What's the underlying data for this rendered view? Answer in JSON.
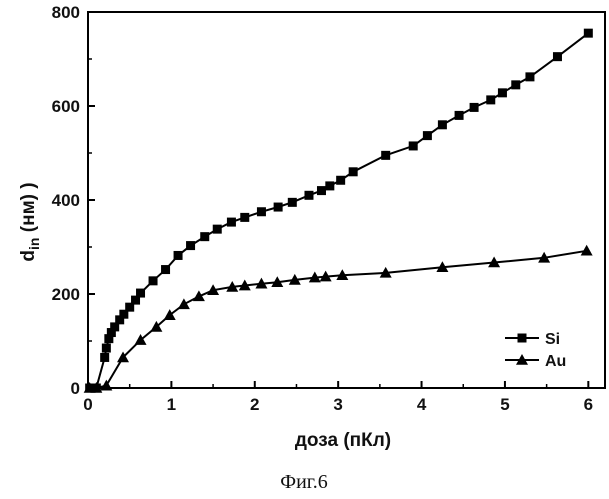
{
  "caption": "Фиг.6",
  "chart_data": {
    "type": "line",
    "xlabel": "доза (пКл)",
    "ylabel_main": "d",
    "ylabel_sub": "in",
    "ylabel_rest": " (нм)  )",
    "xlim": [
      0,
      6.2
    ],
    "ylim": [
      0,
      800
    ],
    "x_ticks": [
      "0",
      "1",
      "2",
      "3",
      "4",
      "5",
      "6"
    ],
    "y_ticks": [
      "0",
      "200",
      "400",
      "600",
      "800"
    ],
    "legend_position": "bottom-right",
    "grid": false,
    "series": [
      {
        "name": "Si",
        "marker": "square",
        "color": "#000000",
        "points": [
          [
            0.02,
            0
          ],
          [
            0.1,
            0
          ],
          [
            0.2,
            65
          ],
          [
            0.22,
            85
          ],
          [
            0.25,
            105
          ],
          [
            0.28,
            118
          ],
          [
            0.32,
            130
          ],
          [
            0.38,
            145
          ],
          [
            0.43,
            157
          ],
          [
            0.5,
            172
          ],
          [
            0.57,
            187
          ],
          [
            0.63,
            202
          ],
          [
            0.78,
            228
          ],
          [
            0.93,
            252
          ],
          [
            1.08,
            282
          ],
          [
            1.23,
            303
          ],
          [
            1.4,
            322
          ],
          [
            1.55,
            338
          ],
          [
            1.72,
            353
          ],
          [
            1.88,
            363
          ],
          [
            2.08,
            375
          ],
          [
            2.28,
            385
          ],
          [
            2.45,
            395
          ],
          [
            2.65,
            410
          ],
          [
            2.8,
            420
          ],
          [
            2.9,
            430
          ],
          [
            3.03,
            442
          ],
          [
            3.18,
            460
          ],
          [
            3.57,
            495
          ],
          [
            3.9,
            515
          ],
          [
            4.07,
            537
          ],
          [
            4.25,
            560
          ],
          [
            4.45,
            580
          ],
          [
            4.63,
            597
          ],
          [
            4.83,
            613
          ],
          [
            4.97,
            628
          ],
          [
            5.13,
            645
          ],
          [
            5.3,
            662
          ],
          [
            5.63,
            705
          ],
          [
            6.0,
            755
          ]
        ]
      },
      {
        "name": "Au",
        "marker": "triangle",
        "color": "#000000",
        "points": [
          [
            0.02,
            0
          ],
          [
            0.1,
            0
          ],
          [
            0.22,
            5
          ],
          [
            0.42,
            65
          ],
          [
            0.63,
            102
          ],
          [
            0.82,
            130
          ],
          [
            0.98,
            155
          ],
          [
            1.15,
            178
          ],
          [
            1.33,
            195
          ],
          [
            1.5,
            208
          ],
          [
            1.73,
            215
          ],
          [
            1.88,
            218
          ],
          [
            2.08,
            222
          ],
          [
            2.27,
            225
          ],
          [
            2.48,
            230
          ],
          [
            2.72,
            235
          ],
          [
            2.85,
            237
          ],
          [
            3.05,
            240
          ],
          [
            3.57,
            245
          ],
          [
            4.25,
            257
          ],
          [
            4.87,
            267
          ],
          [
            5.47,
            277
          ],
          [
            5.98,
            292
          ]
        ]
      }
    ]
  }
}
